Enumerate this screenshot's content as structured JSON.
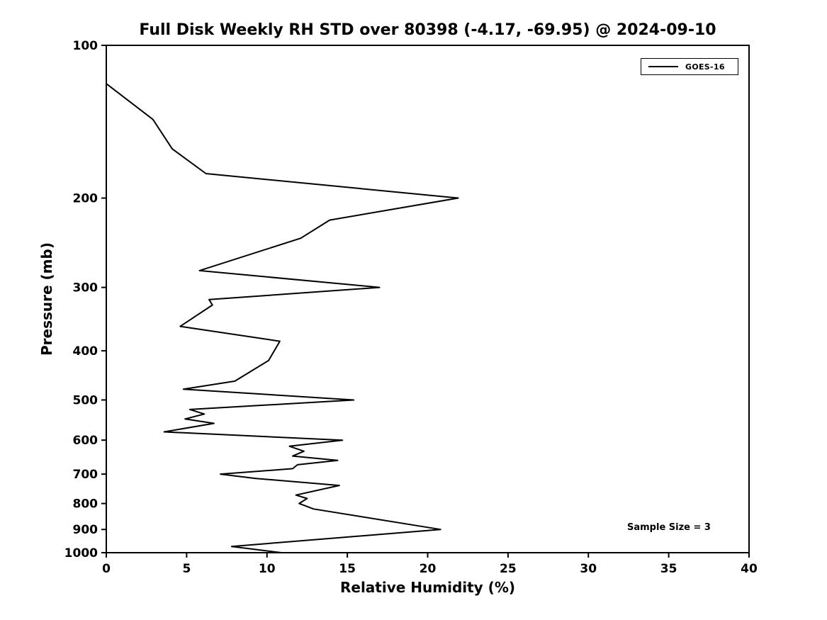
{
  "chart_data": {
    "type": "line",
    "title": "Full Disk Weekly RH STD over 80398 (-4.17, -69.95) @ 2024-09-10",
    "xlabel": "Relative Humidity (%)",
    "ylabel": "Pressure (mb)",
    "xlim": [
      0,
      40
    ],
    "ylim": [
      100,
      1000
    ],
    "y_scale": "log",
    "y_inverted": true,
    "xticks": [
      0,
      5,
      10,
      15,
      20,
      25,
      30,
      35,
      40
    ],
    "yticks": [
      100,
      200,
      300,
      400,
      500,
      600,
      700,
      800,
      900,
      1000
    ],
    "grid": false,
    "line_color": "#000000",
    "background_color": "#ffffff",
    "legend": {
      "position": "top-right",
      "entries": [
        {
          "label": "GOES-16",
          "color": "#000000"
        }
      ]
    },
    "annotation": "Sample Size = 3",
    "series": [
      {
        "name": "GOES-16",
        "pressure_mb": [
          100,
          119,
          140,
          160,
          179,
          200,
          221,
          240,
          278,
          300,
          317,
          325,
          358,
          383,
          418,
          459,
          476,
          500,
          522,
          533,
          545,
          556,
          578,
          600,
          617,
          631,
          645,
          658,
          671,
          683,
          700,
          714,
          737,
          770,
          782,
          800,
          820,
          900,
          972,
          1000
        ],
        "rh_percent": [
          0,
          0,
          2.9,
          4.1,
          6.2,
          21.9,
          13.9,
          12.1,
          5.8,
          17.0,
          6.4,
          6.6,
          4.6,
          10.8,
          10.1,
          8.0,
          4.8,
          15.4,
          5.2,
          6.1,
          4.9,
          6.7,
          3.6,
          14.7,
          11.4,
          12.3,
          11.6,
          14.4,
          11.9,
          11.6,
          7.1,
          9.3,
          14.5,
          11.8,
          12.5,
          12.0,
          12.9,
          20.8,
          7.8,
          10.9
        ]
      }
    ]
  }
}
